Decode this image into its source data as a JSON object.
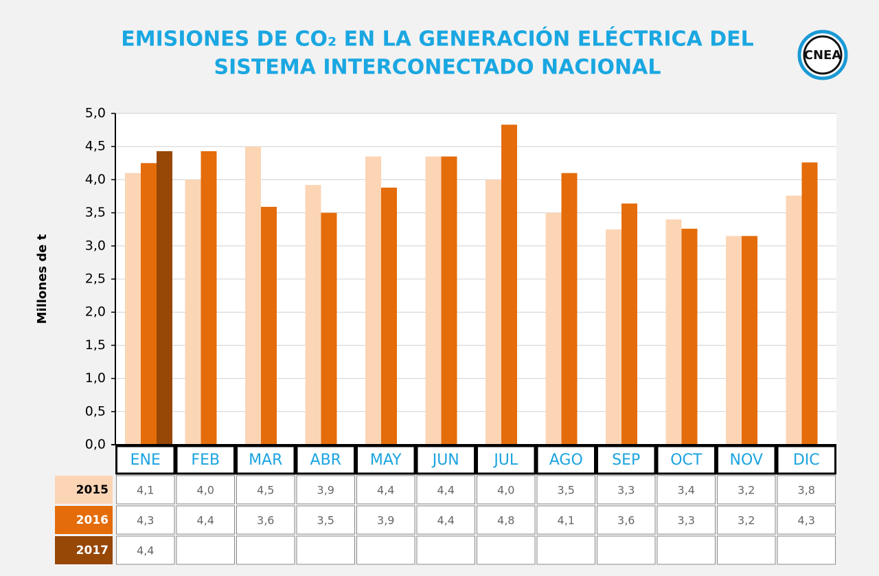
{
  "chart_data": {
    "type": "bar",
    "title": [
      "EMISIONES DE CO₂ EN LA GENERACIÓN ELÉCTRICA DEL",
      "SISTEMA INTERCONECTADO NACIONAL"
    ],
    "logo": "CNEA",
    "y_label": "Millones de t",
    "categories": [
      "ENE",
      "FEB",
      "MAR",
      "ABR",
      "MAY",
      "JUN",
      "JUL",
      "AGO",
      "SEP",
      "OCT",
      "NOV",
      "DIC"
    ],
    "series": [
      {
        "name": "2015",
        "color": "#fcd5b5",
        "values": [
          4.1,
          4.0,
          4.5,
          3.92,
          4.35,
          4.35,
          4.0,
          3.5,
          3.25,
          3.4,
          3.15,
          3.76
        ],
        "value_labels": [
          "4,1",
          "4,0",
          "4,5",
          "3,9",
          "4,4",
          "4,4",
          "4,0",
          "3,5",
          "3,3",
          "3,4",
          "3,2",
          "3,8"
        ]
      },
      {
        "name": "2016",
        "color": "#e46c0a",
        "values": [
          4.25,
          4.43,
          3.59,
          3.5,
          3.88,
          4.35,
          4.83,
          4.1,
          3.64,
          3.26,
          3.15,
          4.26
        ],
        "value_labels": [
          "4,3",
          "4,4",
          "3,6",
          "3,5",
          "3,9",
          "4,4",
          "4,8",
          "4,1",
          "3,6",
          "3,3",
          "3,2",
          "4,3"
        ]
      },
      {
        "name": "2017",
        "color": "#974706",
        "values": [
          4.43,
          null,
          null,
          null,
          null,
          null,
          null,
          null,
          null,
          null,
          null,
          null
        ],
        "value_labels": [
          "4,4",
          null,
          null,
          null,
          null,
          null,
          null,
          null,
          null,
          null,
          null,
          null
        ]
      }
    ],
    "ylim": [
      0,
      5
    ],
    "yticks": [
      {
        "value": 0,
        "label": "0,0"
      },
      {
        "value": 0.5,
        "label": "0,5"
      },
      {
        "value": 1,
        "label": "1,0"
      },
      {
        "value": 1.5,
        "label": "1,5"
      },
      {
        "value": 2,
        "label": "2,0"
      },
      {
        "value": 2.5,
        "label": "2,5"
      },
      {
        "value": 3,
        "label": "3,0"
      },
      {
        "value": 3.5,
        "label": "3,5"
      },
      {
        "value": 4,
        "label": "4,0"
      },
      {
        "value": 4.5,
        "label": "4,5"
      },
      {
        "value": 5,
        "label": "5,0"
      }
    ],
    "grid": true
  }
}
